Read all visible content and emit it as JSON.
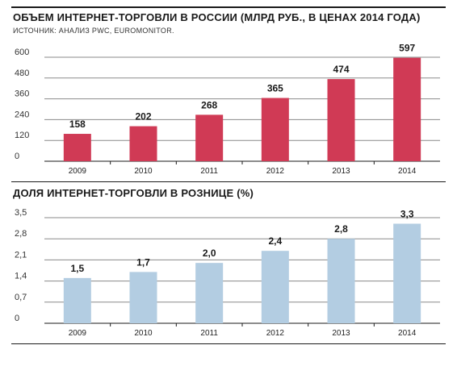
{
  "chart_data": [
    {
      "type": "bar",
      "title": "ОБЪЕМ ИНТЕРНЕТ-ТОРГОВЛИ В РОССИИ (МЛРД РУБ., В ЦЕНАХ 2014 ГОДА)",
      "subtitle": "ИСТОЧНИК: АНАЛИЗ PWC, EUROMONITOR.",
      "categories": [
        "2009",
        "2010",
        "2011",
        "2012",
        "2013",
        "2014"
      ],
      "values": [
        158,
        202,
        268,
        365,
        474,
        597
      ],
      "value_labels": [
        "158",
        "202",
        "268",
        "365",
        "474",
        "597"
      ],
      "yticks": [
        0,
        120,
        240,
        360,
        480,
        600
      ],
      "ytick_labels": [
        "0",
        "120",
        "240",
        "360",
        "480",
        "600"
      ],
      "ylim": [
        0,
        600
      ],
      "grid": true,
      "color": "#d03a55"
    },
    {
      "type": "bar",
      "title": "ДОЛЯ ИНТЕРНЕТ-ТОРГОВЛИ В РОЗНИЦЕ (%)",
      "categories": [
        "2009",
        "2010",
        "2011",
        "2012",
        "2013",
        "2014"
      ],
      "values": [
        1.5,
        1.7,
        2.0,
        2.4,
        2.8,
        3.3
      ],
      "value_labels": [
        "1,5",
        "1,7",
        "2,0",
        "2,4",
        "2,8",
        "3,3"
      ],
      "yticks": [
        0,
        0.7,
        1.4,
        2.1,
        2.8,
        3.5
      ],
      "ytick_labels": [
        "0",
        "0,7",
        "1,4",
        "2,1",
        "2,8",
        "3,5"
      ],
      "ylim": [
        0,
        3.5
      ],
      "grid": true,
      "color": "#b3cde2"
    }
  ]
}
